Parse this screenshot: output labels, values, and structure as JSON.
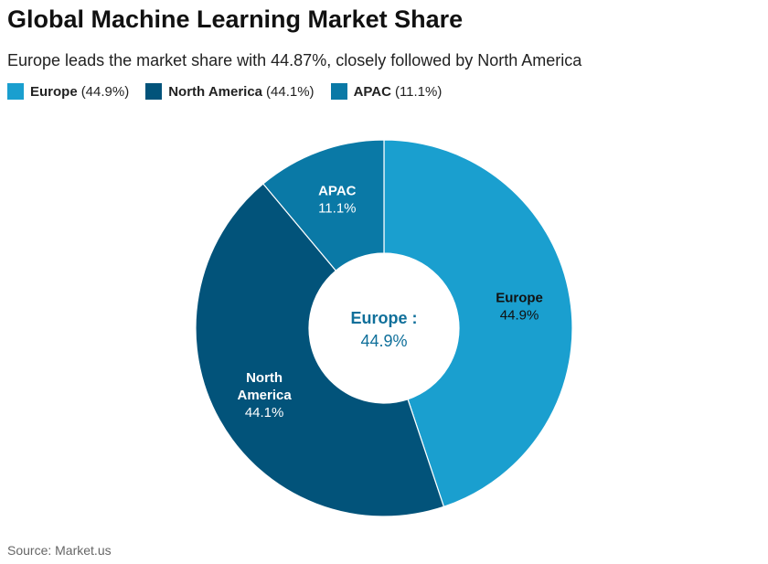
{
  "title": "Global Machine Learning Market Share",
  "subtitle": "Europe leads the market share with 44.87%, closely followed by North America",
  "source": "Source: Market.us",
  "center": {
    "label": "Europe :",
    "value": "44.9%",
    "color": "#0f6f9a"
  },
  "chart_data": {
    "type": "pie",
    "variant": "donut",
    "title": "Global Machine Learning Market Share",
    "legend_position": "top-left",
    "slices": [
      {
        "name": "Europe",
        "value": 44.9,
        "label": "44.9%",
        "legend_pct": "(44.9%)",
        "color": "#1a9fcf",
        "label_color": "#111111",
        "label_lines": [
          "Europe"
        ]
      },
      {
        "name": "North America",
        "value": 44.1,
        "label": "44.1%",
        "legend_pct": "(44.1%)",
        "color": "#02537a",
        "label_color": "#ffffff",
        "label_lines": [
          "North",
          "America"
        ]
      },
      {
        "name": "APAC",
        "value": 11.1,
        "label": "11.1%",
        "legend_pct": "(11.1%)",
        "color": "#0a79a6",
        "label_color": "#ffffff",
        "label_lines": [
          "APAC"
        ]
      }
    ]
  }
}
